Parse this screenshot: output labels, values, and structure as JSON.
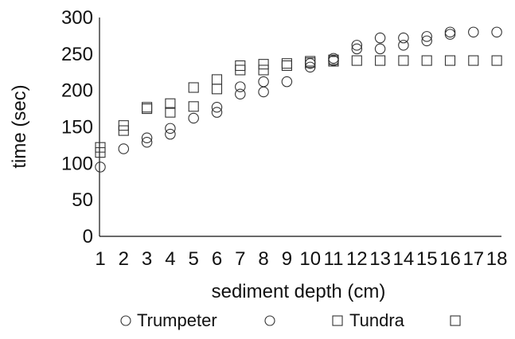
{
  "chart_data": {
    "type": "scatter",
    "xlabel": "sediment depth (cm)",
    "ylabel": "time (sec)",
    "xlim": [
      1,
      18
    ],
    "ylim": [
      0,
      300
    ],
    "x_ticks": [
      1,
      2,
      3,
      4,
      5,
      6,
      7,
      8,
      9,
      10,
      11,
      12,
      13,
      14,
      15,
      16,
      17,
      18
    ],
    "y_ticks": [
      0,
      50,
      100,
      150,
      200,
      250,
      300
    ],
    "grid": false,
    "legend_position": "bottom",
    "series": [
      {
        "name": "Trumpeter",
        "marker": "circle",
        "color": "#333333",
        "points": [
          [
            1,
            95
          ],
          [
            2,
            120
          ],
          [
            3,
            129
          ],
          [
            3,
            135
          ],
          [
            4,
            140
          ],
          [
            4,
            148
          ],
          [
            5,
            162
          ],
          [
            6,
            170
          ],
          [
            6,
            177
          ],
          [
            7,
            195
          ],
          [
            7,
            205
          ],
          [
            8,
            198
          ],
          [
            8,
            212
          ],
          [
            9,
            212
          ],
          [
            10,
            232
          ],
          [
            10,
            237
          ],
          [
            11,
            241
          ],
          [
            11,
            244
          ],
          [
            12,
            257
          ],
          [
            12,
            262
          ],
          [
            13,
            257
          ],
          [
            13,
            272
          ],
          [
            14,
            262
          ],
          [
            14,
            272
          ],
          [
            15,
            268
          ],
          [
            15,
            274
          ],
          [
            16,
            277
          ],
          [
            16,
            280
          ],
          [
            17,
            280
          ],
          [
            18,
            280
          ]
        ]
      },
      {
        "name": "Tundra",
        "marker": "square",
        "color": "#333333",
        "points": [
          [
            1,
            115
          ],
          [
            1,
            122
          ],
          [
            2,
            145
          ],
          [
            2,
            152
          ],
          [
            3,
            175
          ],
          [
            3,
            177
          ],
          [
            4,
            170
          ],
          [
            4,
            182
          ],
          [
            5,
            178
          ],
          [
            5,
            204
          ],
          [
            6,
            202
          ],
          [
            6,
            215
          ],
          [
            7,
            228
          ],
          [
            7,
            234
          ],
          [
            8,
            228
          ],
          [
            8,
            236
          ],
          [
            9,
            234
          ],
          [
            9,
            237
          ],
          [
            10,
            238
          ],
          [
            10,
            240
          ],
          [
            11,
            240
          ],
          [
            11,
            242
          ],
          [
            12,
            241
          ],
          [
            13,
            241
          ],
          [
            14,
            241
          ],
          [
            15,
            241
          ],
          [
            16,
            241
          ],
          [
            17,
            241
          ],
          [
            18,
            241
          ]
        ]
      }
    ]
  }
}
